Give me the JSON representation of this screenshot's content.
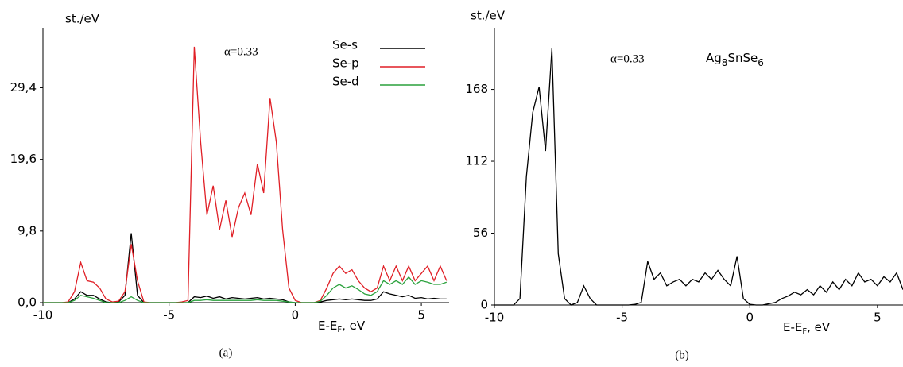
{
  "chart_data": [
    {
      "type": "line",
      "ylabel": "st./eV",
      "xlabel": [
        "E-E",
        "F",
        ", eV"
      ],
      "annotation": "α=0.33",
      "caption": "(a)",
      "xlim": [
        -10,
        6.1
      ],
      "xticks": [
        -10,
        -5,
        0,
        5
      ],
      "ylim": [
        0,
        37.6
      ],
      "yticks": [
        {
          "value": 0,
          "label": "0,0"
        },
        {
          "value": 9.8,
          "label": "9,8"
        },
        {
          "value": 19.6,
          "label": "19,6"
        },
        {
          "value": 29.4,
          "label": "29,4"
        }
      ],
      "legend": "upper right",
      "x": [
        -10,
        -9.75,
        -9.5,
        -9.25,
        -9,
        -8.75,
        -8.5,
        -8.25,
        -8,
        -7.75,
        -7.5,
        -7.25,
        -7,
        -6.75,
        -6.5,
        -6.25,
        -6,
        -5.75,
        -5.5,
        -5.25,
        -5,
        -4.75,
        -4.5,
        -4.25,
        -4,
        -3.75,
        -3.5,
        -3.25,
        -3,
        -2.75,
        -2.5,
        -2.25,
        -2,
        -1.75,
        -1.5,
        -1.25,
        -1,
        -0.75,
        -0.5,
        -0.25,
        0,
        0.25,
        0.5,
        0.75,
        1,
        1.25,
        1.5,
        1.75,
        2,
        2.25,
        2.5,
        2.75,
        3,
        3.25,
        3.5,
        3.75,
        4,
        4.25,
        4.5,
        4.75,
        5,
        5.25,
        5.5,
        5.75,
        6
      ],
      "series": [
        {
          "name": "Se-s",
          "color": "#000000",
          "values": [
            0,
            0,
            0,
            0,
            0,
            0.5,
            1.5,
            1,
            1,
            0.5,
            0.1,
            0,
            0.1,
            1,
            9.5,
            1,
            0,
            0,
            0,
            0,
            0,
            0,
            0,
            0,
            0.8,
            0.7,
            0.9,
            0.6,
            0.8,
            0.5,
            0.7,
            0.6,
            0.5,
            0.6,
            0.7,
            0.5,
            0.6,
            0.5,
            0.4,
            0.1,
            0,
            0,
            0,
            0,
            0.1,
            0.3,
            0.4,
            0.5,
            0.4,
            0.5,
            0.4,
            0.3,
            0.3,
            0.5,
            1.5,
            1.2,
            1,
            0.8,
            1,
            0.6,
            0.7,
            0.5,
            0.6,
            0.5,
            0.5
          ]
        },
        {
          "name": "Se-p",
          "color": "#e01f26",
          "values": [
            0,
            0,
            0,
            0,
            0.1,
            1.5,
            5.5,
            3,
            2.8,
            2,
            0.5,
            0.1,
            0.2,
            1.5,
            8,
            3,
            0.1,
            0,
            0,
            0,
            0,
            0,
            0.1,
            0.3,
            35,
            22,
            12,
            16,
            10,
            14,
            9,
            13,
            15,
            12,
            19,
            15,
            28,
            22,
            10,
            2,
            0.3,
            0,
            0,
            0,
            0.3,
            2,
            4,
            5,
            4,
            4.5,
            3,
            2,
            1.5,
            2,
            5,
            3,
            5,
            3,
            5,
            3,
            4,
            5,
            3,
            5,
            3
          ]
        },
        {
          "name": "Se-d",
          "color": "#2aa13c",
          "values": [
            0,
            0,
            0,
            0,
            0,
            0.3,
            1,
            0.8,
            0.6,
            0.3,
            0,
            0,
            0,
            0.3,
            0.8,
            0.3,
            0,
            0,
            0,
            0,
            0,
            0,
            0,
            0,
            0.3,
            0.3,
            0.4,
            0.3,
            0.3,
            0.3,
            0.3,
            0.3,
            0.3,
            0.3,
            0.4,
            0.3,
            0.3,
            0.3,
            0.2,
            0.1,
            0,
            0,
            0,
            0,
            0.2,
            1,
            2,
            2.5,
            2,
            2.3,
            1.8,
            1.2,
            1,
            1.5,
            3,
            2.5,
            3,
            2.5,
            3.5,
            2.5,
            3,
            2.8,
            2.5,
            2.5,
            2.8
          ]
        }
      ]
    },
    {
      "type": "line",
      "ylabel": "st./eV",
      "xlabel": [
        "E-E",
        "F",
        ", eV"
      ],
      "annotation": "α=0.33",
      "formula": [
        "Ag",
        "8",
        "SnSe",
        "6"
      ],
      "caption": "(b)",
      "xlim": [
        -10,
        6
      ],
      "xticks": [
        -10,
        -5,
        0,
        5
      ],
      "ylim": [
        0,
        216
      ],
      "yticks": [
        0,
        56,
        112,
        168
      ],
      "x": [
        -10,
        -9.75,
        -9.5,
        -9.25,
        -9,
        -8.75,
        -8.5,
        -8.25,
        -8,
        -7.75,
        -7.5,
        -7.25,
        -7,
        -6.75,
        -6.5,
        -6.25,
        -6,
        -5.75,
        -5.5,
        -5.25,
        -5,
        -4.75,
        -4.5,
        -4.25,
        -4,
        -3.75,
        -3.5,
        -3.25,
        -3,
        -2.75,
        -2.5,
        -2.25,
        -2,
        -1.75,
        -1.5,
        -1.25,
        -1,
        -0.75,
        -0.5,
        -0.25,
        0,
        0.25,
        0.5,
        0.75,
        1,
        1.25,
        1.5,
        1.75,
        2,
        2.25,
        2.5,
        2.75,
        3,
        3.25,
        3.5,
        3.75,
        4,
        4.25,
        4.5,
        4.75,
        5,
        5.25,
        5.5,
        5.75,
        6
      ],
      "series": [
        {
          "color": "#000000",
          "values": [
            0,
            0,
            0,
            0,
            5,
            100,
            150,
            170,
            120,
            200,
            40,
            5,
            0,
            2,
            15,
            5,
            0,
            0,
            0,
            0,
            0,
            0,
            0.5,
            2,
            34,
            20,
            25,
            15,
            18,
            20,
            15,
            20,
            18,
            25,
            20,
            27,
            20,
            15,
            38,
            5,
            0.5,
            0,
            0,
            1,
            2,
            5,
            7,
            10,
            8,
            12,
            8,
            15,
            10,
            18,
            12,
            20,
            15,
            25,
            18,
            20,
            15,
            22,
            18,
            25,
            12
          ]
        }
      ]
    }
  ]
}
